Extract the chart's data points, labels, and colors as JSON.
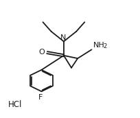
{
  "bg_color": "#ffffff",
  "line_color": "#1a1a1a",
  "line_width": 1.3,
  "font_size_label": 8.0,
  "font_size_sub": 6.0,
  "xlim": [
    0,
    10
  ],
  "ylim": [
    0,
    10
  ]
}
